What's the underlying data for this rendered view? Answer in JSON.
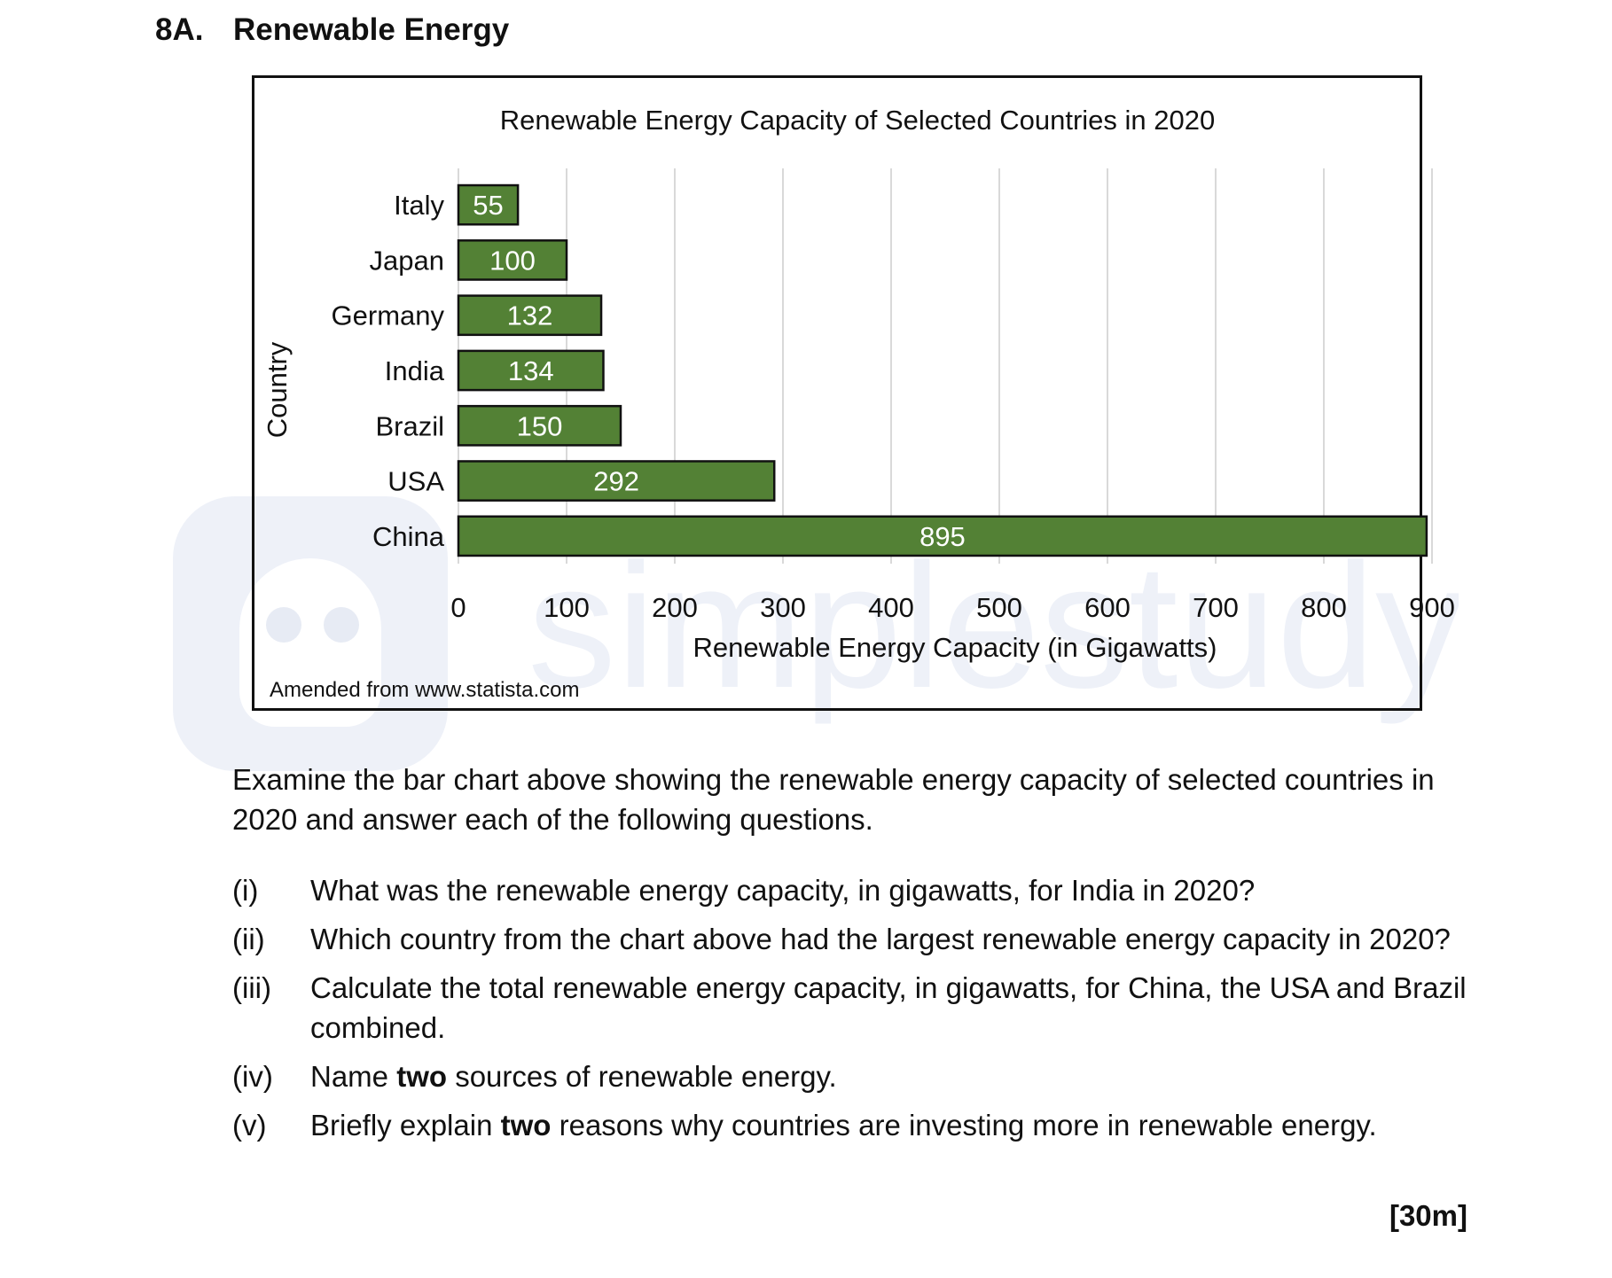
{
  "question": {
    "number": "8A.",
    "title": "Renewable Energy"
  },
  "chart_data": {
    "type": "bar",
    "orientation": "horizontal",
    "title": "Renewable Energy Capacity of Selected Countries in 2020",
    "xlabel": "Renewable Energy Capacity (in Gigawatts)",
    "ylabel": "Country",
    "categories": [
      "Italy",
      "Japan",
      "Germany",
      "India",
      "Brazil",
      "USA",
      "China"
    ],
    "values": [
      55,
      100,
      132,
      134,
      150,
      292,
      895
    ],
    "data_labels": [
      "55",
      "100",
      "132",
      "134",
      "150",
      "292",
      "895"
    ],
    "xlim": [
      0,
      900
    ],
    "xticks": [
      0,
      100,
      200,
      300,
      400,
      500,
      600,
      700,
      800,
      900
    ],
    "grid": "vertical",
    "legend": "none",
    "source": "Amended from www.statista.com",
    "colors": {
      "bar": "#538135",
      "bar_edge": "#111111",
      "grid": "#d9d9d9",
      "label": "#ffffff"
    }
  },
  "intro": "Examine the bar chart above showing the renewable energy capacity of selected countries in 2020 and answer each of the following questions.",
  "questions": [
    {
      "label": "(i)",
      "text": "What was the renewable energy capacity, in gigawatts, for India in 2020?"
    },
    {
      "label": "(ii)",
      "text": "Which country from the chart above had the largest renewable energy capacity in 2020?"
    },
    {
      "label": "(iii)",
      "text": "Calculate the total renewable energy capacity, in gigawatts, for China, the USA and Brazil combined."
    },
    {
      "label": "(iv)",
      "pre": "Name ",
      "bold": "two",
      "post": " sources of renewable energy."
    },
    {
      "label": "(v)",
      "pre": "Briefly explain ",
      "bold": "two",
      "post": " reasons why countries are investing more in renewable energy."
    }
  ],
  "marks": "[30m]",
  "watermark": {
    "text": "simplestudy"
  }
}
